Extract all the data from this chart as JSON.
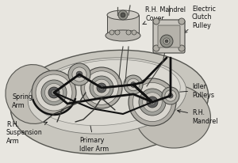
{
  "bg_color": "#e8e6e0",
  "font_size": 5.8,
  "font_color": "#111111",
  "line_color": "#1a1a1a",
  "deck_outer_color": "#d0cfc8",
  "deck_inner_color": "#dddbd4",
  "deck_edge_color": "#555550",
  "pulley_face": "#b8b5ac",
  "pulley_inner": "#888580",
  "pulley_hub": "#555550",
  "belt_color": "#111111",
  "arm_color": "#333330",
  "labels": {
    "rh_mandrel_cover": "R.H. Mandrel\nCover",
    "electric_clutch": "Electric\nClutch\nPulley",
    "idler_pulleys": "Idler\nPulleys",
    "rh_mandrel": "R.H.\nMandrel",
    "spring_arm": "Spring\nArm",
    "rh_suspension": "R.H.\nSuspension\nArm",
    "primary_idler": "Primary\nIdler Arm"
  }
}
